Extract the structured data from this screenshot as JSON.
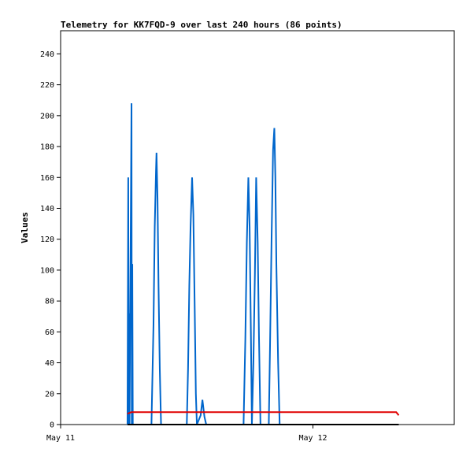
{
  "chart_data": {
    "type": "line",
    "title": "Telemetry for KK7FQD-9 over last 240 hours (86 points)",
    "xlabel": "",
    "ylabel": "Values",
    "ylim": [
      0,
      255
    ],
    "yticks": [
      0,
      20,
      40,
      60,
      80,
      100,
      120,
      140,
      160,
      180,
      200,
      220,
      240
    ],
    "xlim": [
      0.0,
      1.56
    ],
    "xticks": [
      {
        "value": 0.0,
        "label": "May 11"
      },
      {
        "value": 1.0,
        "label": "May 12"
      }
    ],
    "grid": false,
    "legend": "none",
    "series": [
      {
        "color": "#0066cc",
        "points": [
          [
            0.265,
            0
          ],
          [
            0.268,
            160
          ],
          [
            0.27,
            0
          ],
          [
            0.271,
            72
          ],
          [
            0.273,
            0
          ],
          [
            0.281,
            208
          ],
          [
            0.282,
            0
          ],
          [
            0.284,
            104
          ],
          [
            0.286,
            0
          ],
          [
            0.36,
            0
          ],
          [
            0.368,
            64
          ],
          [
            0.373,
            128
          ],
          [
            0.378,
            164
          ],
          [
            0.38,
            176
          ],
          [
            0.384,
            146
          ],
          [
            0.388,
            90
          ],
          [
            0.393,
            36
          ],
          [
            0.398,
            0
          ],
          [
            0.5,
            0
          ],
          [
            0.505,
            36
          ],
          [
            0.51,
            90
          ],
          [
            0.515,
            128
          ],
          [
            0.521,
            160
          ],
          [
            0.526,
            136
          ],
          [
            0.531,
            80
          ],
          [
            0.536,
            20
          ],
          [
            0.54,
            0
          ],
          [
            0.555,
            6
          ],
          [
            0.562,
            16
          ],
          [
            0.57,
            5
          ],
          [
            0.577,
            0
          ],
          [
            0.725,
            0
          ],
          [
            0.732,
            55
          ],
          [
            0.738,
            118
          ],
          [
            0.744,
            160
          ],
          [
            0.749,
            128
          ],
          [
            0.754,
            60
          ],
          [
            0.758,
            0
          ],
          [
            0.764,
            40
          ],
          [
            0.77,
            98
          ],
          [
            0.775,
            160
          ],
          [
            0.781,
            118
          ],
          [
            0.786,
            58
          ],
          [
            0.792,
            0
          ],
          [
            0.825,
            0
          ],
          [
            0.83,
            52
          ],
          [
            0.836,
            120
          ],
          [
            0.842,
            178
          ],
          [
            0.847,
            192
          ],
          [
            0.851,
            160
          ],
          [
            0.855,
            104
          ],
          [
            0.862,
            40
          ],
          [
            0.868,
            0
          ]
        ]
      },
      {
        "color": "#e00000",
        "points": [
          [
            0.265,
            7
          ],
          [
            0.28,
            8
          ],
          [
            1.33,
            8
          ],
          [
            1.34,
            6
          ]
        ]
      },
      {
        "color": "#000000",
        "points": [
          [
            0.265,
            0
          ],
          [
            1.34,
            0
          ]
        ]
      }
    ]
  }
}
